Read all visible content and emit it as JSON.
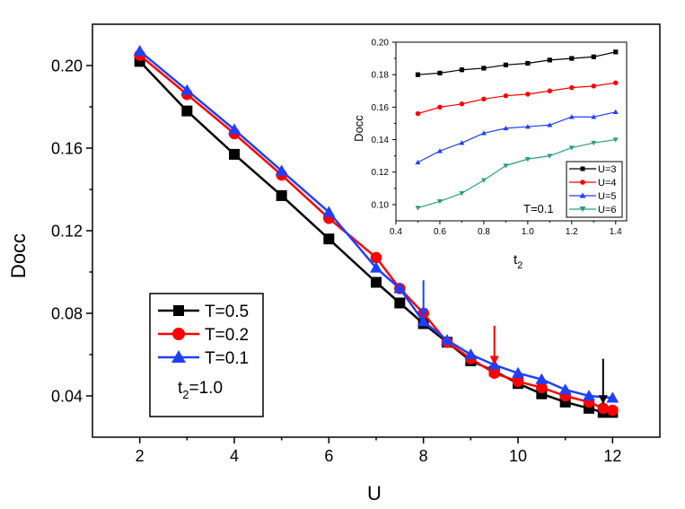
{
  "chart_data": [
    {
      "id": "main",
      "type": "line",
      "title": "",
      "xlabel": "U",
      "ylabel": "Docc",
      "xlim": [
        1,
        13
      ],
      "ylim": [
        0.02,
        0.22
      ],
      "xticks": [
        "2",
        "4",
        "6",
        "8",
        "10",
        "12"
      ],
      "yticks": [
        "0.04",
        "0.08",
        "0.12",
        "0.16",
        "0.20"
      ],
      "legend_position": "bottom-left",
      "annotation": {
        "label": "t",
        "sub": "2",
        "value": "=1.0"
      },
      "series": [
        {
          "name": "T=0.5",
          "color": "#000000",
          "marker": "square",
          "x": [
            2,
            3,
            4,
            5,
            6,
            7,
            7.5,
            8,
            8.5,
            9,
            9.5,
            10,
            10.5,
            11,
            11.5,
            11.8,
            12
          ],
          "values": [
            0.202,
            0.178,
            0.157,
            0.137,
            0.116,
            0.095,
            0.085,
            0.075,
            0.066,
            0.057,
            0.052,
            0.046,
            0.041,
            0.037,
            0.034,
            0.032,
            0.032
          ]
        },
        {
          "name": "T=0.2",
          "color": "#ff0000",
          "marker": "circle",
          "x": [
            2,
            3,
            4,
            5,
            6,
            7,
            7.5,
            8,
            8.5,
            9,
            9.5,
            10,
            10.5,
            11,
            11.5,
            11.8,
            12
          ],
          "values": [
            0.205,
            0.186,
            0.167,
            0.147,
            0.126,
            0.107,
            0.092,
            0.08,
            0.066,
            0.058,
            0.051,
            0.047,
            0.044,
            0.04,
            0.037,
            0.034,
            0.033
          ]
        },
        {
          "name": "T=0.1",
          "color": "#1f3fff",
          "marker": "triangle-up",
          "x": [
            2,
            3,
            4,
            5,
            6,
            7,
            7.5,
            8,
            8.5,
            9,
            9.5,
            10,
            10.5,
            11,
            11.5,
            12
          ],
          "values": [
            0.207,
            0.188,
            0.169,
            0.149,
            0.129,
            0.102,
            0.092,
            0.076,
            0.067,
            0.06,
            0.055,
            0.051,
            0.048,
            0.043,
            0.04,
            0.039
          ]
        }
      ],
      "arrows": [
        {
          "x": 8,
          "from": 0.096,
          "to": 0.078,
          "color": "#1f3fff"
        },
        {
          "x": 9.5,
          "from": 0.074,
          "to": 0.055,
          "color": "#ff0000"
        },
        {
          "x": 11.8,
          "from": 0.058,
          "to": 0.036,
          "color": "#000000"
        }
      ]
    },
    {
      "id": "inset",
      "type": "line",
      "title": "",
      "xlabel": "t",
      "xlabel_sub": "2",
      "ylabel": "Docc",
      "xlim": [
        0.4,
        1.45
      ],
      "ylim": [
        0.09,
        0.2
      ],
      "xticks": [
        "0.4",
        "0.6",
        "0.8",
        "1.0",
        "1.2",
        "1.4"
      ],
      "yticks": [
        "0.10",
        "0.12",
        "0.14",
        "0.16",
        "0.18",
        "0.20"
      ],
      "legend_position": "bottom-right",
      "annotation": "T=0.1",
      "series": [
        {
          "name": "U=3",
          "color": "#000000",
          "marker": "square",
          "x": [
            0.5,
            0.6,
            0.7,
            0.8,
            0.9,
            1.0,
            1.1,
            1.2,
            1.3,
            1.4
          ],
          "values": [
            0.18,
            0.181,
            0.183,
            0.184,
            0.186,
            0.187,
            0.189,
            0.19,
            0.191,
            0.194
          ]
        },
        {
          "name": "U=4",
          "color": "#ff0000",
          "marker": "circle",
          "x": [
            0.5,
            0.6,
            0.7,
            0.8,
            0.9,
            1.0,
            1.1,
            1.2,
            1.3,
            1.4
          ],
          "values": [
            0.156,
            0.16,
            0.162,
            0.165,
            0.167,
            0.168,
            0.17,
            0.172,
            0.173,
            0.175
          ]
        },
        {
          "name": "U=5",
          "color": "#1f3fff",
          "marker": "triangle-up",
          "x": [
            0.5,
            0.6,
            0.7,
            0.8,
            0.9,
            1.0,
            1.1,
            1.2,
            1.3,
            1.4
          ],
          "values": [
            0.126,
            0.133,
            0.138,
            0.144,
            0.147,
            0.148,
            0.149,
            0.154,
            0.154,
            0.157
          ]
        },
        {
          "name": "U=6",
          "color": "#2a9d7f",
          "marker": "triangle-down",
          "x": [
            0.5,
            0.6,
            0.7,
            0.8,
            0.9,
            1.0,
            1.1,
            1.2,
            1.3,
            1.4
          ],
          "values": [
            0.098,
            0.102,
            0.107,
            0.115,
            0.124,
            0.128,
            0.13,
            0.135,
            0.138,
            0.14
          ]
        }
      ]
    }
  ]
}
